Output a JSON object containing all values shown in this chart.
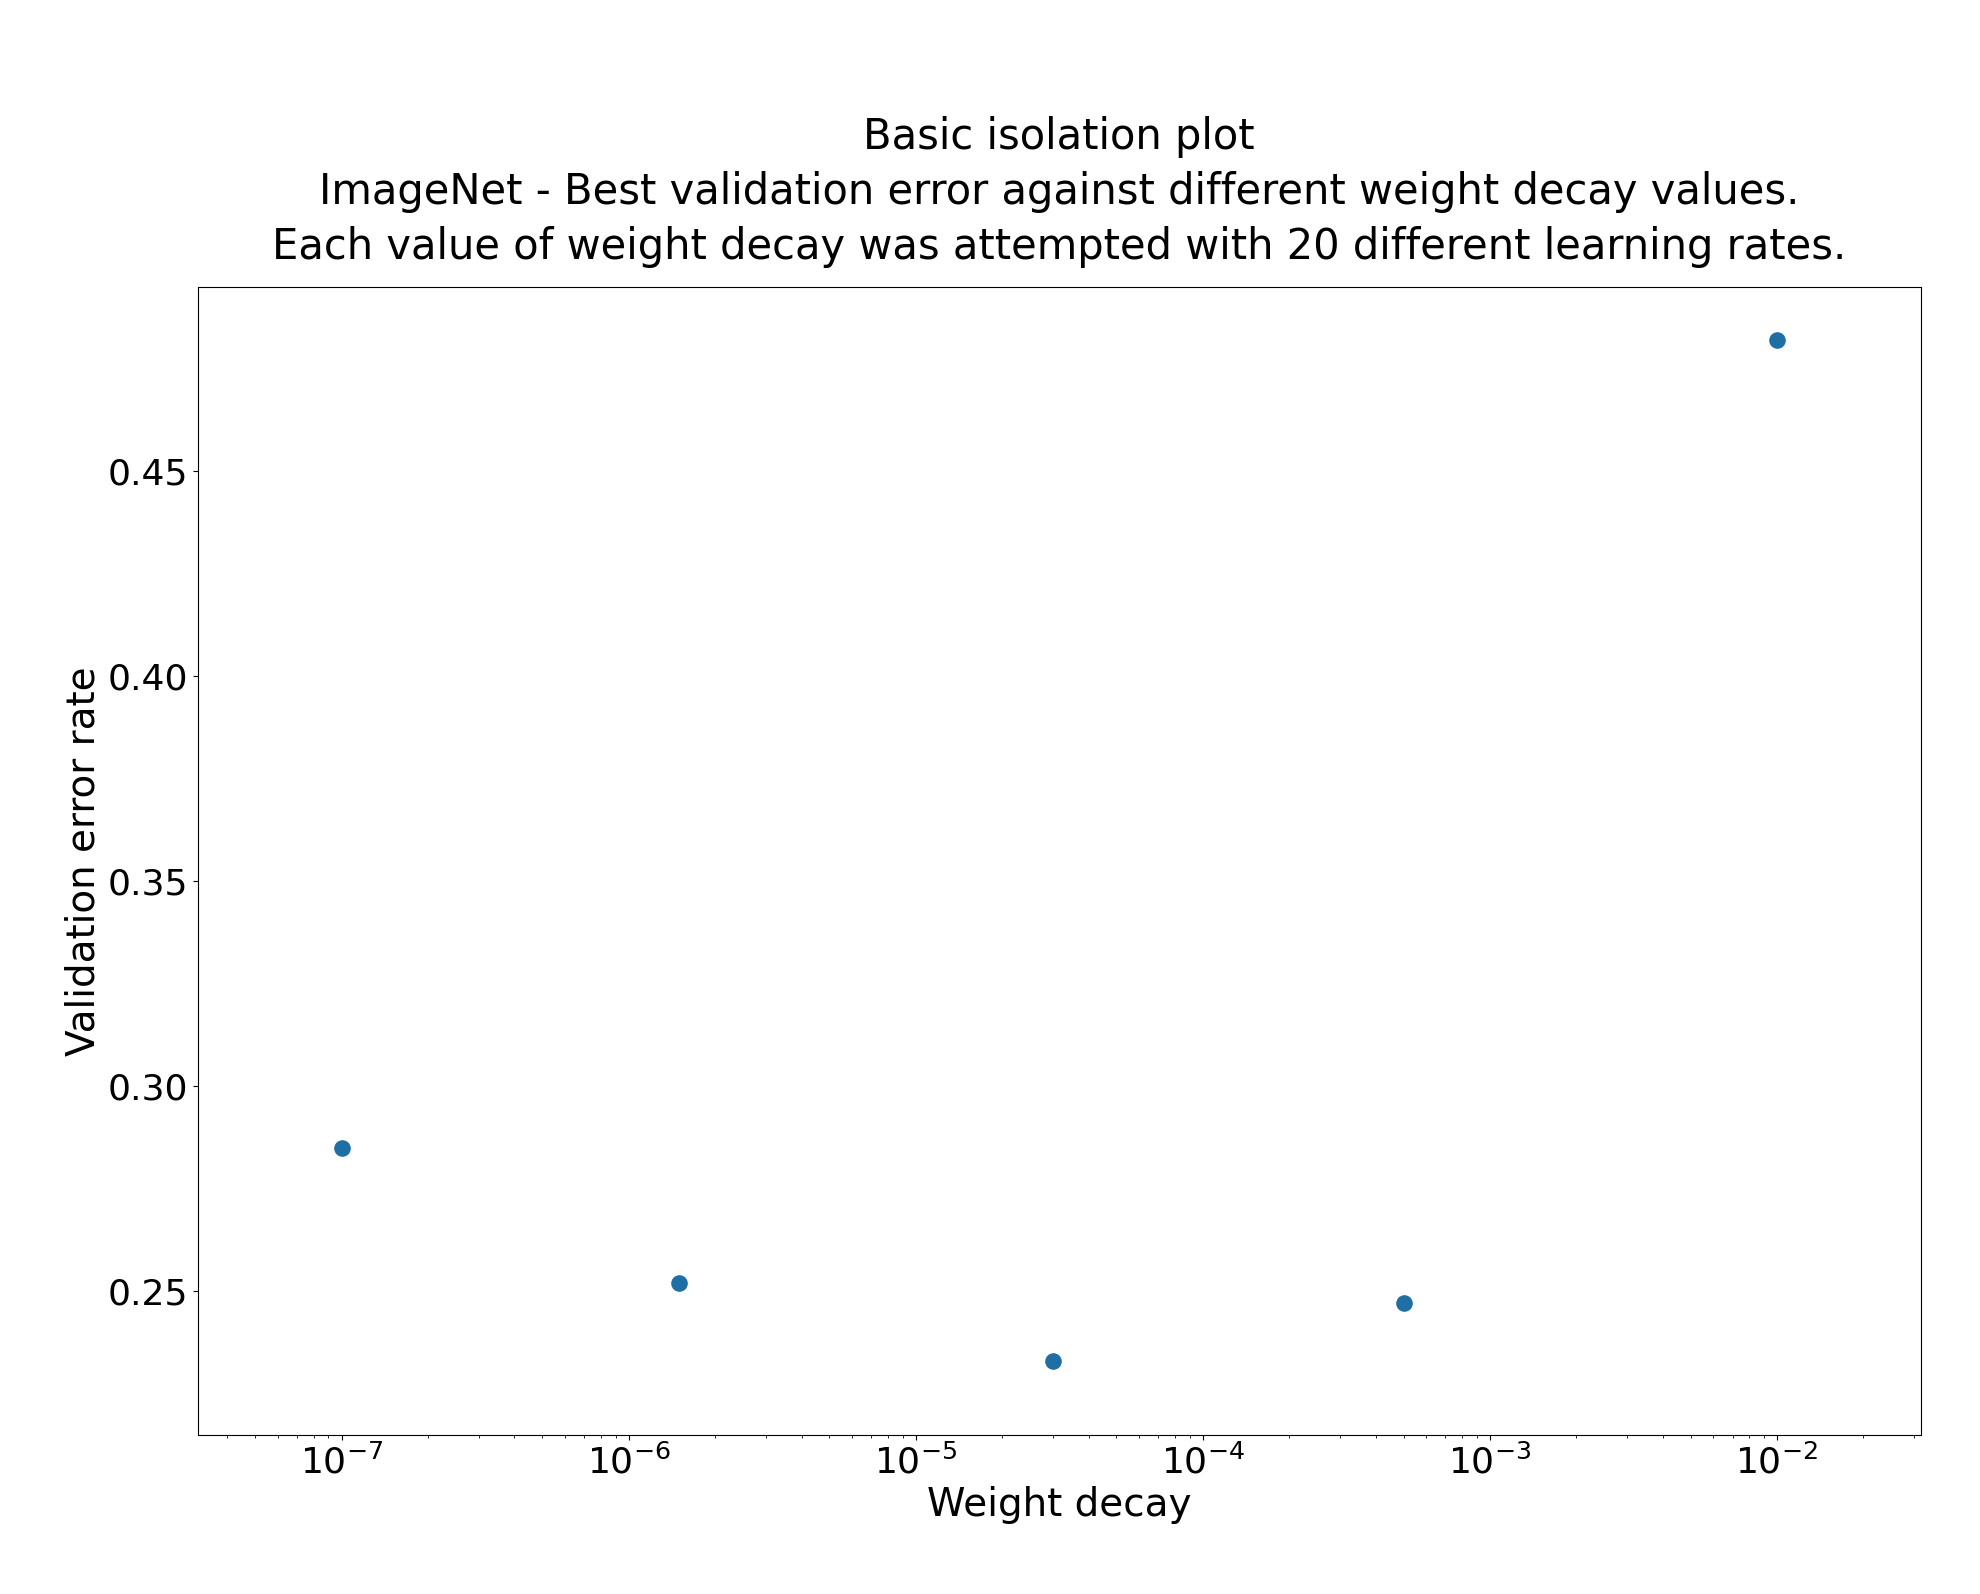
{
  "title_line1": "Basic isolation plot",
  "title_line2": "ImageNet - Best validation error against different weight decay values.\nEach value of weight decay was attempted with 20 different learning rates.",
  "xlabel": "Weight decay",
  "ylabel": "Validation error rate",
  "x_values": [
    1e-07,
    1.5e-06,
    3e-05,
    0.0005,
    0.01
  ],
  "y_values": [
    0.285,
    0.252,
    0.233,
    0.247,
    0.482
  ],
  "marker_color": "#1f6fa4",
  "marker_size": 120,
  "xlim_log": [
    -7.5,
    -1.5
  ],
  "ylim": [
    0.215,
    0.495
  ],
  "title_fontsize": 30,
  "subtitle_fontsize": 30,
  "axis_label_fontsize": 28,
  "tick_fontsize": 26,
  "figure_width": 19.8,
  "figure_height": 15.94,
  "dpi": 100
}
